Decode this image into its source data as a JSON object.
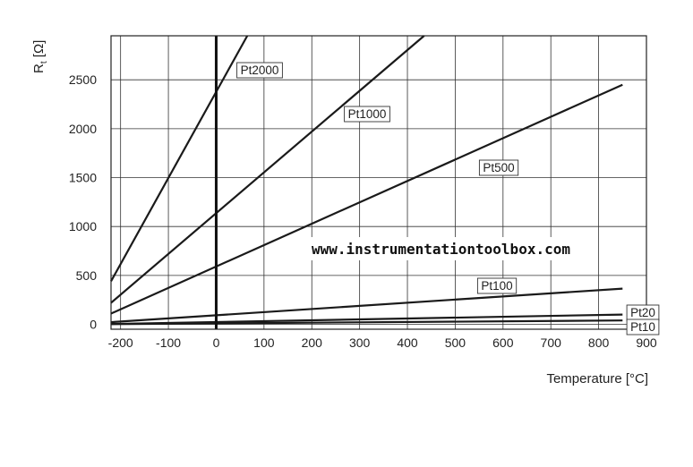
{
  "chart_data": {
    "type": "line",
    "xlabel": "Temperature [°C]",
    "ylabel": "R",
    "ylabel_sub": "t",
    "ylabel_unit": " [Ω]",
    "xlim": [
      -220,
      900
    ],
    "ylim": [
      -50,
      2950
    ],
    "x_ticks": [
      "-200",
      "-100",
      "0",
      "100",
      "200",
      "300",
      "400",
      "500",
      "600",
      "700",
      "800",
      "900"
    ],
    "y_ticks": [
      "0",
      "500",
      "1000",
      "1500",
      "2000",
      "2500"
    ],
    "grid": true,
    "annotation": "www.instrumentationtoolbox.com",
    "series": [
      {
        "name": "Pt2000",
        "x": [
          -220,
          65
        ],
        "y": [
          440,
          2950
        ]
      },
      {
        "name": "Pt1000",
        "x": [
          -220,
          435
        ],
        "y": [
          220,
          2950
        ]
      },
      {
        "name": "Pt500",
        "x": [
          -220,
          850
        ],
        "y": [
          110,
          2450
        ]
      },
      {
        "name": "Pt100",
        "x": [
          -220,
          850
        ],
        "y": [
          22,
          365
        ]
      },
      {
        "name": "Pt20",
        "x": [
          -220,
          850
        ],
        "y": [
          4,
          100
        ]
      },
      {
        "name": "Pt10",
        "x": [
          -220,
          850
        ],
        "y": [
          2,
          40
        ]
      }
    ]
  }
}
